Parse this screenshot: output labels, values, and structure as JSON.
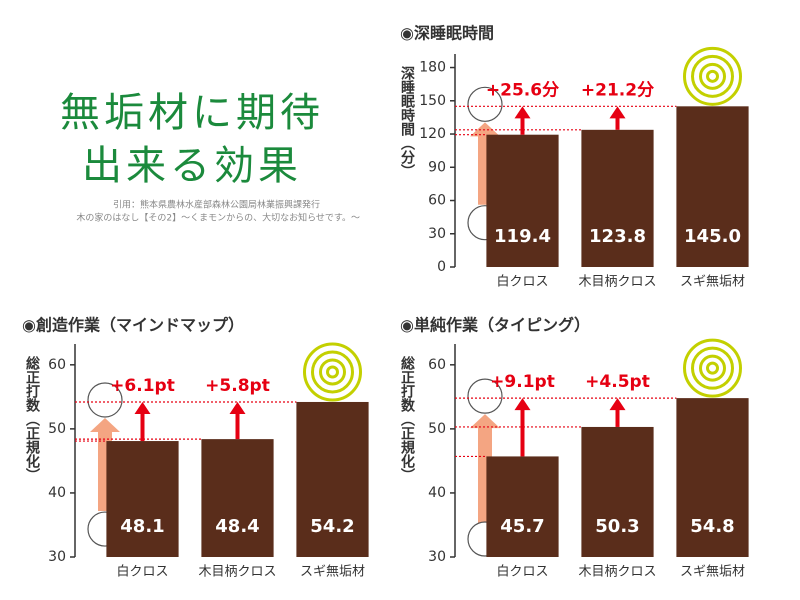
{
  "header": {
    "title": [
      "無垢材に期待",
      "出来る効果"
    ],
    "source": [
      "引用：熊本県農林水産部森林公園局林業振興課発行",
      "木の家のはなし【その2】～くまモンからの、大切なお知らせです。～"
    ]
  },
  "chart_data": [
    {
      "type": "bar",
      "title": "◉深睡眠時間",
      "y_label": "深睡眠時間（分）",
      "categories": [
        "白クロス",
        "木目柄クロス",
        "スギ無垢材"
      ],
      "values": [
        119.4,
        123.8,
        145.0
      ],
      "value_labels": [
        "119.4",
        "123.8",
        "145.0"
      ],
      "annotations": [
        "+25.6分",
        "+21.2分"
      ],
      "color": "#5a2d1b",
      "ylim": [
        0,
        185
      ],
      "yticks": [
        0,
        30,
        60,
        90,
        120,
        150,
        180
      ]
    },
    {
      "type": "bar",
      "title": "◉創造作業（マインドマップ）",
      "y_label": "総正打数（正規化）",
      "categories": [
        "白クロス",
        "木目柄クロス",
        "スギ無垢材"
      ],
      "values": [
        48.1,
        48.4,
        54.2
      ],
      "value_labels": [
        "48.1",
        "48.4",
        "54.2"
      ],
      "annotations": [
        "+6.1pt",
        "+5.8pt"
      ],
      "color": "#5a2d1b",
      "ylim": [
        30,
        62
      ],
      "yticks": [
        30,
        40,
        50,
        60
      ]
    },
    {
      "type": "bar",
      "title": "◉単純作業（タイピング）",
      "y_label": "総正打数（正規化）",
      "categories": [
        "白クロス",
        "木目柄クロス",
        "スギ無垢材"
      ],
      "values": [
        45.7,
        50.3,
        54.8
      ],
      "value_labels": [
        "45.7",
        "50.3",
        "54.8"
      ],
      "annotations": [
        "+9.1pt",
        "+4.5pt"
      ],
      "color": "#5a2d1b",
      "ylim": [
        30,
        62
      ],
      "yticks": [
        30,
        40,
        50,
        60
      ]
    }
  ]
}
